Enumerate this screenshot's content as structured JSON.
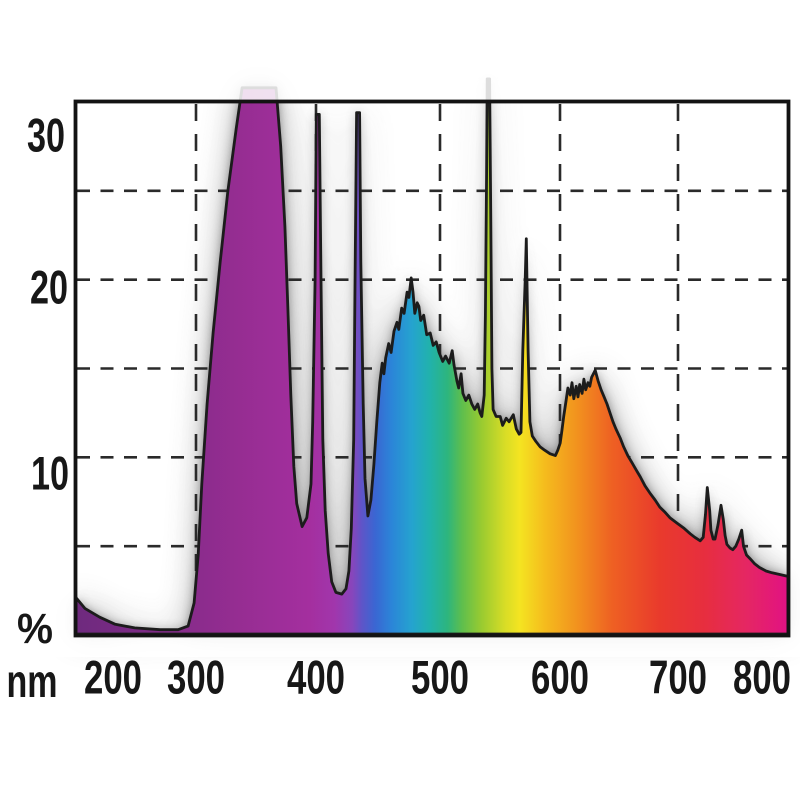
{
  "chart_data": {
    "type": "area",
    "title": "",
    "xlabel": "nm",
    "ylabel": "%",
    "xlim": [
      200,
      800
    ],
    "ylim": [
      0,
      30
    ],
    "grid": true,
    "x_ticks": [
      200,
      300,
      400,
      500,
      600,
      700,
      800
    ],
    "y_ticks": [
      30,
      20,
      10
    ],
    "x_gridlines_nm": [
      300,
      400,
      500,
      600,
      700
    ],
    "y_gridlines_pct": [
      5,
      10,
      15,
      20,
      25
    ],
    "clipped_peaks_nm": [
      340,
      368,
      546
    ],
    "emission_line_peaks_nm": [
      405,
      436,
      546,
      578
    ],
    "series": [
      {
        "name": "relative spectral intensity",
        "points": [
          [
            200,
            2.1
          ],
          [
            207.5,
            1.5
          ],
          [
            220,
            1.0
          ],
          [
            233,
            0.6
          ],
          [
            249.5,
            0.4
          ],
          [
            271,
            0.3
          ],
          [
            286,
            0.3
          ],
          [
            294.5,
            0.5
          ],
          [
            299.5,
            1.8
          ],
          [
            303,
            4.5
          ],
          [
            306,
            8.5
          ],
          [
            310.5,
            13
          ],
          [
            315.5,
            17
          ],
          [
            321.5,
            21
          ],
          [
            328,
            25
          ],
          [
            335,
            28.5
          ],
          [
            340,
            30.8
          ],
          [
            368.5,
            30.8
          ],
          [
            372.5,
            27.5
          ],
          [
            376,
            23
          ],
          [
            378.5,
            18.5
          ],
          [
            381,
            13.5
          ],
          [
            383.5,
            9.5
          ],
          [
            386,
            7.4
          ],
          [
            390.5,
            6.1
          ],
          [
            394.5,
            6.6
          ],
          [
            398,
            8.5
          ],
          [
            399.5,
            12
          ],
          [
            401.5,
            20
          ],
          [
            402.5,
            29.3
          ],
          [
            405,
            29.3
          ],
          [
            406.5,
            20
          ],
          [
            408,
            11
          ],
          [
            410,
            7
          ],
          [
            412.5,
            4.6
          ],
          [
            415.5,
            3.0
          ],
          [
            419,
            2.4
          ],
          [
            424,
            2.3
          ],
          [
            427.5,
            2.6
          ],
          [
            430,
            3.6
          ],
          [
            432,
            6
          ],
          [
            434,
            11
          ],
          [
            435,
            19
          ],
          [
            436.5,
            29.4
          ],
          [
            439,
            29.4
          ],
          [
            440,
            21
          ],
          [
            442,
            13
          ],
          [
            443.5,
            8.8
          ],
          [
            446,
            6.7
          ],
          [
            448.5,
            7.6
          ],
          [
            451,
            9.6
          ],
          [
            453.5,
            12
          ],
          [
            456,
            14.2
          ],
          [
            458,
            15.3
          ],
          [
            459.5,
            14.7
          ],
          [
            461,
            15.6
          ],
          [
            463.5,
            16.4
          ],
          [
            465.5,
            15.9
          ],
          [
            468,
            17.1
          ],
          [
            470.5,
            17.6
          ],
          [
            472,
            17.2
          ],
          [
            474.5,
            18.4
          ],
          [
            476.5,
            18.1
          ],
          [
            479,
            19.3
          ],
          [
            480.5,
            19
          ],
          [
            482.5,
            20.1
          ],
          [
            484,
            19.3
          ],
          [
            485.5,
            18.1
          ],
          [
            487.5,
            18.7
          ],
          [
            489,
            18.5
          ],
          [
            490.5,
            17.7
          ],
          [
            493,
            18
          ],
          [
            495.5,
            16.9
          ],
          [
            498.5,
            17
          ],
          [
            501,
            16.3
          ],
          [
            503.5,
            16.5
          ],
          [
            506,
            15.9
          ],
          [
            509,
            15.4
          ],
          [
            511.5,
            15.7
          ],
          [
            514.5,
            15.3
          ],
          [
            517,
            16
          ],
          [
            518.5,
            15.2
          ],
          [
            521,
            14.3
          ],
          [
            522.5,
            13.9
          ],
          [
            524.5,
            14.7
          ],
          [
            526,
            13.6
          ],
          [
            528.5,
            13.2
          ],
          [
            531,
            13.5
          ],
          [
            533.5,
            13
          ],
          [
            536,
            12.7
          ],
          [
            538.5,
            13
          ],
          [
            540.5,
            12.5
          ],
          [
            542,
            12.3
          ],
          [
            544,
            13.5
          ],
          [
            545,
            18
          ],
          [
            546,
            26
          ],
          [
            546.5,
            31.3
          ],
          [
            548.5,
            31.3
          ],
          [
            549.5,
            24
          ],
          [
            550.5,
            15
          ],
          [
            551.5,
            12.7
          ],
          [
            554,
            12.3
          ],
          [
            557.5,
            12.3
          ],
          [
            559.5,
            11.8
          ],
          [
            562.5,
            12.2
          ],
          [
            565,
            12.0
          ],
          [
            568.5,
            12.4
          ],
          [
            571,
            11.6
          ],
          [
            573.5,
            11.3
          ],
          [
            575,
            11.4
          ],
          [
            576.5,
            16
          ],
          [
            578.5,
            20
          ],
          [
            579.5,
            22.3
          ],
          [
            581,
            16
          ],
          [
            582.5,
            12
          ],
          [
            584.5,
            11.2
          ],
          [
            587.5,
            10.9
          ],
          [
            591,
            10.6
          ],
          [
            595,
            10.4
          ],
          [
            599.5,
            10.2
          ],
          [
            604,
            10.1
          ],
          [
            606,
            10.4
          ],
          [
            608,
            10.8
          ],
          [
            609.5,
            11.5
          ],
          [
            611,
            12.3
          ],
          [
            613,
            13.2
          ],
          [
            614.5,
            13.9
          ],
          [
            616.5,
            13.5
          ],
          [
            618,
            14.2
          ],
          [
            619.5,
            13.3
          ],
          [
            621.5,
            14
          ],
          [
            623,
            13.4
          ],
          [
            624.5,
            14.1
          ],
          [
            626.5,
            13.6
          ],
          [
            628,
            14.4
          ],
          [
            629.5,
            13.8
          ],
          [
            631.5,
            14.2
          ],
          [
            633,
            14
          ],
          [
            634.5,
            14.5
          ],
          [
            637.5,
            14.9
          ],
          [
            640,
            14.3
          ],
          [
            642.5,
            13.8
          ],
          [
            645,
            13.4
          ],
          [
            647.5,
            13
          ],
          [
            650,
            12.5
          ],
          [
            652.5,
            12
          ],
          [
            655,
            11.6
          ],
          [
            658.5,
            11.1
          ],
          [
            661.5,
            10.6
          ],
          [
            665,
            10.1
          ],
          [
            668.5,
            9.7
          ],
          [
            672,
            9.3
          ],
          [
            675.5,
            8.9
          ],
          [
            679.5,
            8.4
          ],
          [
            683.5,
            8
          ],
          [
            688,
            7.6
          ],
          [
            692,
            7.2
          ],
          [
            696.5,
            6.9
          ],
          [
            700.5,
            6.6
          ],
          [
            706.5,
            6.3
          ],
          [
            712.5,
            6
          ],
          [
            717.5,
            5.7
          ],
          [
            721.5,
            5.5
          ],
          [
            726,
            5.3
          ],
          [
            728.5,
            5.5
          ],
          [
            730.5,
            6.8
          ],
          [
            732,
            8.3
          ],
          [
            734,
            7
          ],
          [
            735,
            5.9
          ],
          [
            737,
            5.4
          ],
          [
            738.5,
            5.4
          ],
          [
            741,
            6.2
          ],
          [
            743.5,
            7.3
          ],
          [
            745.5,
            6.5
          ],
          [
            747,
            5.6
          ],
          [
            748.5,
            5.1
          ],
          [
            751,
            4.9
          ],
          [
            753.5,
            4.8
          ],
          [
            756,
            5
          ],
          [
            758.5,
            5.4
          ],
          [
            761,
            5.9
          ],
          [
            762.5,
            5
          ],
          [
            765,
            4.5
          ],
          [
            768,
            4.3
          ],
          [
            772,
            4
          ],
          [
            776,
            3.8
          ],
          [
            781.5,
            3.6
          ],
          [
            786.5,
            3.5
          ],
          [
            793.5,
            3.4
          ],
          [
            800,
            3.3
          ]
        ]
      }
    ],
    "spectrum_gradient": [
      [
        200,
        "#6E2A7E"
      ],
      [
        262,
        "#7E2B86"
      ],
      [
        338,
        "#962D92"
      ],
      [
        397,
        "#A42F9F"
      ],
      [
        418,
        "#A136AC"
      ],
      [
        433,
        "#8746BC"
      ],
      [
        441,
        "#5E55C8"
      ],
      [
        452,
        "#3A66D2"
      ],
      [
        466,
        "#2B85D8"
      ],
      [
        483,
        "#25A3CF"
      ],
      [
        498,
        "#21B2AC"
      ],
      [
        513,
        "#2DB57E"
      ],
      [
        525,
        "#5DBE4E"
      ],
      [
        542,
        "#9ACB30"
      ],
      [
        562,
        "#D9DD26"
      ],
      [
        574,
        "#F4E421"
      ],
      [
        595,
        "#F5BC1D"
      ],
      [
        621,
        "#F2941E"
      ],
      [
        652,
        "#EE6023"
      ],
      [
        692,
        "#E93A2C"
      ],
      [
        730,
        "#E72E3F"
      ],
      [
        764,
        "#E52762"
      ],
      [
        789,
        "#E31879"
      ],
      [
        800,
        "#E01284"
      ]
    ],
    "legend": null
  },
  "colors": {
    "background": "#ffffff",
    "plot_background": "#ffffff",
    "frame_border": "#131313",
    "gridline": "#2a2a2a",
    "curve_outline": "#1c1c1c",
    "halo_soft": "#9a9a9a",
    "halo_dark": "#646464",
    "label_text": "#171717"
  },
  "axis": {
    "x_unit_label": "nm",
    "y_unit_label": "%",
    "x_tick_labels": [
      "200",
      "300",
      "400",
      "500",
      "600",
      "700",
      "800"
    ],
    "y_tick_labels": [
      "30",
      "20",
      "10"
    ]
  }
}
